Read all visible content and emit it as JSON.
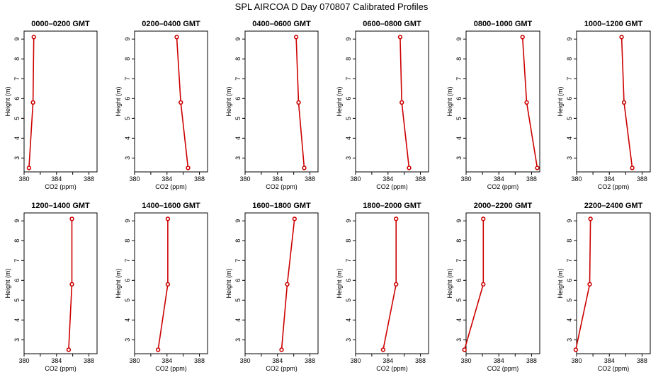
{
  "figure": {
    "title": "SPL AIRCOA D  Day 070807  Calibrated Profiles"
  },
  "chart_data": [
    {
      "type": "line",
      "title": "0000–0200 GMT",
      "xlabel": "CO2 (ppm)",
      "ylabel": "Height (m)",
      "xlim": [
        380,
        389
      ],
      "ylim": [
        2.3,
        9.4
      ],
      "xticks": [
        380,
        384,
        388
      ],
      "yticks": [
        3,
        4,
        5,
        6,
        7,
        8,
        9
      ],
      "series": [
        {
          "x": [
            381.2,
            381.1,
            380.6
          ],
          "y": [
            9.1,
            5.8,
            2.5
          ]
        }
      ]
    },
    {
      "type": "line",
      "title": "0200–0400 GMT",
      "xlabel": "CO2 (ppm)",
      "ylabel": "Height (m)",
      "xlim": [
        380,
        389
      ],
      "ylim": [
        2.3,
        9.4
      ],
      "xticks": [
        380,
        384,
        388
      ],
      "yticks": [
        3,
        4,
        5,
        6,
        7,
        8,
        9
      ],
      "series": [
        {
          "x": [
            385.2,
            385.7,
            386.6
          ],
          "y": [
            9.1,
            5.8,
            2.5
          ]
        }
      ]
    },
    {
      "type": "line",
      "title": "0400–0600 GMT",
      "xlabel": "CO2 (ppm)",
      "ylabel": "Height (m)",
      "xlim": [
        380,
        389
      ],
      "ylim": [
        2.3,
        9.4
      ],
      "xticks": [
        380,
        384,
        388
      ],
      "yticks": [
        3,
        4,
        5,
        6,
        7,
        8,
        9
      ],
      "series": [
        {
          "x": [
            386.3,
            386.6,
            387.3
          ],
          "y": [
            9.1,
            5.8,
            2.5
          ]
        }
      ]
    },
    {
      "type": "line",
      "title": "0600–0800 GMT",
      "xlabel": "CO2 (ppm)",
      "ylabel": "Height (m)",
      "xlim": [
        380,
        389
      ],
      "ylim": [
        2.3,
        9.4
      ],
      "xticks": [
        380,
        384,
        388
      ],
      "yticks": [
        3,
        4,
        5,
        6,
        7,
        8,
        9
      ],
      "series": [
        {
          "x": [
            385.5,
            385.7,
            386.6
          ],
          "y": [
            9.1,
            5.8,
            2.5
          ]
        }
      ]
    },
    {
      "type": "line",
      "title": "0800–1000 GMT",
      "xlabel": "CO2 (ppm)",
      "ylabel": "Height (m)",
      "xlim": [
        380,
        389
      ],
      "ylim": [
        2.3,
        9.4
      ],
      "xticks": [
        380,
        384,
        388
      ],
      "yticks": [
        3,
        4,
        5,
        6,
        7,
        8,
        9
      ],
      "series": [
        {
          "x": [
            386.9,
            387.4,
            388.7
          ],
          "y": [
            9.1,
            5.8,
            2.5
          ]
        }
      ]
    },
    {
      "type": "line",
      "title": "1000–1200 GMT",
      "xlabel": "CO2 (ppm)",
      "ylabel": "Height (m)",
      "xlim": [
        380,
        389
      ],
      "ylim": [
        2.3,
        9.4
      ],
      "xticks": [
        380,
        384,
        388
      ],
      "yticks": [
        3,
        4,
        5,
        6,
        7,
        8,
        9
      ],
      "series": [
        {
          "x": [
            385.5,
            385.8,
            386.8
          ],
          "y": [
            9.1,
            5.8,
            2.5
          ]
        }
      ]
    },
    {
      "type": "line",
      "title": "1200–1400 GMT",
      "xlabel": "CO2 (ppm)",
      "ylabel": "Height (m)",
      "xlim": [
        380,
        389
      ],
      "ylim": [
        2.3,
        9.4
      ],
      "xticks": [
        380,
        384,
        388
      ],
      "yticks": [
        3,
        4,
        5,
        6,
        7,
        8,
        9
      ],
      "series": [
        {
          "x": [
            385.9,
            385.9,
            385.5
          ],
          "y": [
            9.1,
            5.8,
            2.5
          ]
        }
      ]
    },
    {
      "type": "line",
      "title": "1400–1600 GMT",
      "xlabel": "CO2 (ppm)",
      "ylabel": "Height (m)",
      "xlim": [
        380,
        389
      ],
      "ylim": [
        2.3,
        9.4
      ],
      "xticks": [
        380,
        384,
        388
      ],
      "yticks": [
        3,
        4,
        5,
        6,
        7,
        8,
        9
      ],
      "series": [
        {
          "x": [
            384.1,
            384.1,
            382.9
          ],
          "y": [
            9.1,
            5.8,
            2.5
          ]
        }
      ]
    },
    {
      "type": "line",
      "title": "1600–1800 GMT",
      "xlabel": "CO2 (ppm)",
      "ylabel": "Height (m)",
      "xlim": [
        380,
        389
      ],
      "ylim": [
        2.3,
        9.4
      ],
      "xticks": [
        380,
        384,
        388
      ],
      "yticks": [
        3,
        4,
        5,
        6,
        7,
        8,
        9
      ],
      "series": [
        {
          "x": [
            386.1,
            385.2,
            384.5
          ],
          "y": [
            9.1,
            5.8,
            2.5
          ]
        }
      ]
    },
    {
      "type": "line",
      "title": "1800–2000 GMT",
      "xlabel": "CO2 (ppm)",
      "ylabel": "Height (m)",
      "xlim": [
        380,
        389
      ],
      "ylim": [
        2.3,
        9.4
      ],
      "xticks": [
        380,
        384,
        388
      ],
      "yticks": [
        3,
        4,
        5,
        6,
        7,
        8,
        9
      ],
      "series": [
        {
          "x": [
            385.0,
            385.0,
            383.4
          ],
          "y": [
            9.1,
            5.8,
            2.5
          ]
        }
      ]
    },
    {
      "type": "line",
      "title": "2000–2200 GMT",
      "xlabel": "CO2 (ppm)",
      "ylabel": "Height (m)",
      "xlim": [
        380,
        389
      ],
      "ylim": [
        2.3,
        9.4
      ],
      "xticks": [
        380,
        384,
        388
      ],
      "yticks": [
        3,
        4,
        5,
        6,
        7,
        8,
        9
      ],
      "series": [
        {
          "x": [
            382.1,
            382.1,
            379.8
          ],
          "y": [
            9.1,
            5.8,
            2.5
          ]
        }
      ]
    },
    {
      "type": "line",
      "title": "2200–2400 GMT",
      "xlabel": "CO2 (ppm)",
      "ylabel": "Height (m)",
      "xlim": [
        380,
        389
      ],
      "ylim": [
        2.3,
        9.4
      ],
      "xticks": [
        380,
        384,
        388
      ],
      "yticks": [
        3,
        4,
        5,
        6,
        7,
        8,
        9
      ],
      "series": [
        {
          "x": [
            381.7,
            381.6,
            379.9
          ],
          "y": [
            9.1,
            5.8,
            2.5
          ]
        }
      ]
    }
  ],
  "style": {
    "line_color": "#cc0000",
    "background": "#ffffff",
    "axis_color": "#000000"
  }
}
